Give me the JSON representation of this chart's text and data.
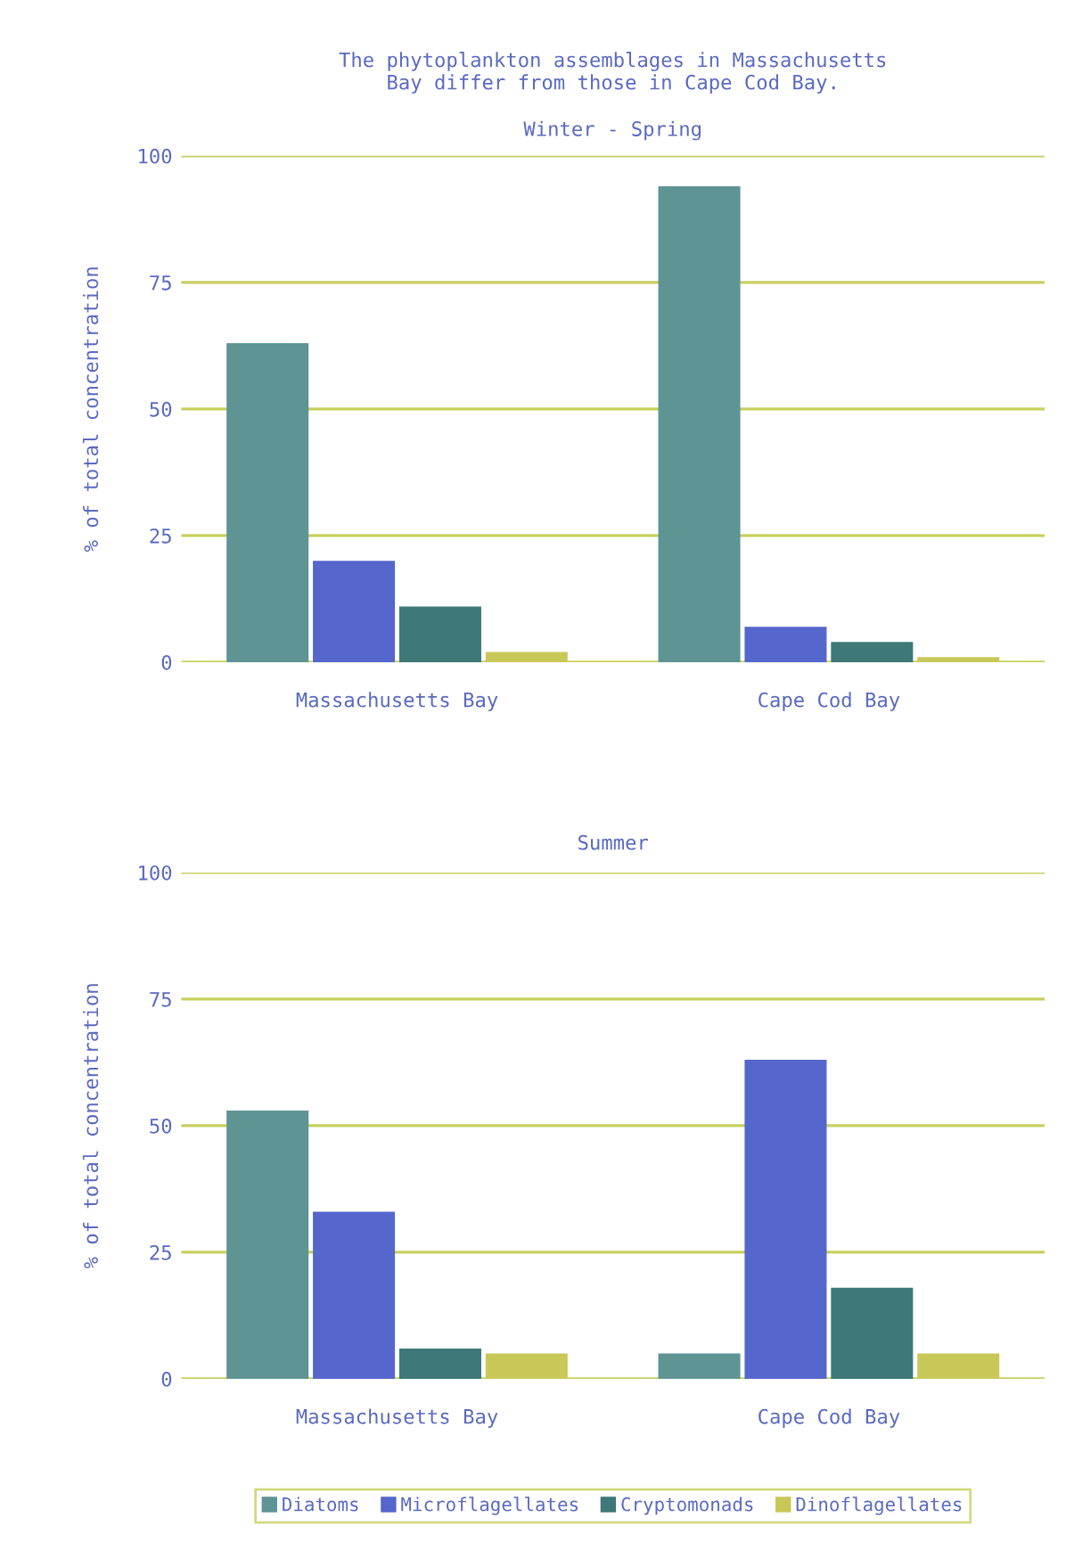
{
  "chart_data": [
    {
      "type": "bar",
      "title": "The phytoplankton assemblages in Massachusetts\nBay differ from those in Cape Cod Bay.",
      "subtitle": "Winter - Spring",
      "ylabel": "% of total concentration",
      "categories": [
        "Massachusetts Bay",
        "Cape Cod Bay"
      ],
      "series": [
        {
          "color": "#5e9494",
          "values": [
            63,
            94
          ]
        },
        {
          "color": "#5566cc",
          "values": [
            20,
            7
          ]
        },
        {
          "color": "#3f7878",
          "values": [
            11,
            4
          ]
        },
        {
          "color": "#c8c858",
          "values": [
            2,
            1
          ]
        }
      ],
      "ylim": [
        0,
        100
      ],
      "yticks": [
        0,
        25,
        50,
        75,
        100
      ],
      "grid": "y",
      "legend": false
    },
    {
      "type": "bar",
      "title": "Summer",
      "ylabel": "% of total concentration",
      "categories": [
        "Massachusetts Bay",
        "Cape Cod Bay"
      ],
      "series": [
        {
          "name": "Diatoms",
          "color": "#5e9494",
          "values": [
            53,
            5
          ]
        },
        {
          "name": "Microflagellates",
          "color": "#5566cc",
          "values": [
            33,
            63
          ]
        },
        {
          "name": "Cryptomonads",
          "color": "#3f7878",
          "values": [
            6,
            18
          ]
        },
        {
          "name": "Dinoflagellates",
          "color": "#c8c858",
          "values": [
            5,
            5
          ]
        }
      ],
      "ylim": [
        0,
        100
      ],
      "yticks": [
        0,
        25,
        50,
        75,
        100
      ],
      "grid": "y",
      "legend": "bottom"
    }
  ]
}
